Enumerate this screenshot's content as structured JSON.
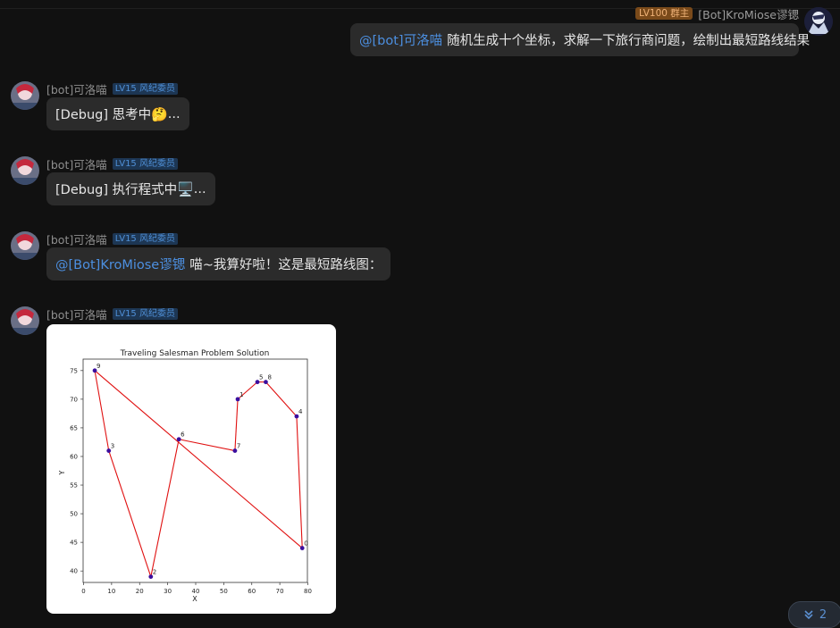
{
  "self_message": {
    "badge": "LV100 群主",
    "name": "[Bot]KroMiose谬锶",
    "mention": "@[bot]可洛喵",
    "text": "随机生成十个坐标，求解一下旅行商问题，绘制出最短路线结果"
  },
  "bot": {
    "name": "[bot]可洛喵",
    "badge": "LV15 风纪委员"
  },
  "messages": [
    {
      "text": "[Debug] 思考中",
      "emoji": "🤔",
      "suffix": "..."
    },
    {
      "text": "[Debug] 执行程式中",
      "emoji": "🖥️",
      "suffix": "..."
    },
    {
      "mention": "@[Bot]KroMiose谬锶",
      "text": "喵~我算好啦！这是最短路线图："
    }
  ],
  "chart_data": {
    "type": "scatter",
    "title": "Traveling Salesman Problem Solution",
    "xlabel": "X",
    "ylabel": "Y",
    "xlim": [
      0,
      80
    ],
    "ylim": [
      38,
      77
    ],
    "xticks": [
      0,
      10,
      20,
      30,
      40,
      50,
      60,
      70,
      80
    ],
    "yticks": [
      40,
      45,
      50,
      55,
      60,
      65,
      70,
      75
    ],
    "points": [
      {
        "label": "0",
        "x": 78,
        "y": 44
      },
      {
        "label": "1",
        "x": 55,
        "y": 70
      },
      {
        "label": "2",
        "x": 24,
        "y": 39
      },
      {
        "label": "3",
        "x": 9,
        "y": 61
      },
      {
        "label": "4",
        "x": 76,
        "y": 67
      },
      {
        "label": "5",
        "x": 62,
        "y": 73
      },
      {
        "label": "6",
        "x": 34,
        "y": 63
      },
      {
        "label": "7",
        "x": 54,
        "y": 61
      },
      {
        "label": "8",
        "x": 65,
        "y": 73
      },
      {
        "label": "9",
        "x": 4,
        "y": 75
      }
    ],
    "route": [
      0,
      4,
      8,
      5,
      1,
      7,
      6,
      2,
      3,
      9,
      0
    ],
    "point_color": "#3b0f9e",
    "line_color": "#e01010"
  },
  "scroll_button": {
    "count": "2",
    "icon": "double-chevron-down-icon"
  },
  "colors": {
    "background": "#111111",
    "bubble": "#2b2b2b",
    "mention": "#4c8fe0",
    "badge_lv": "#4f8fd6",
    "badge_owner": "#f0b277"
  }
}
